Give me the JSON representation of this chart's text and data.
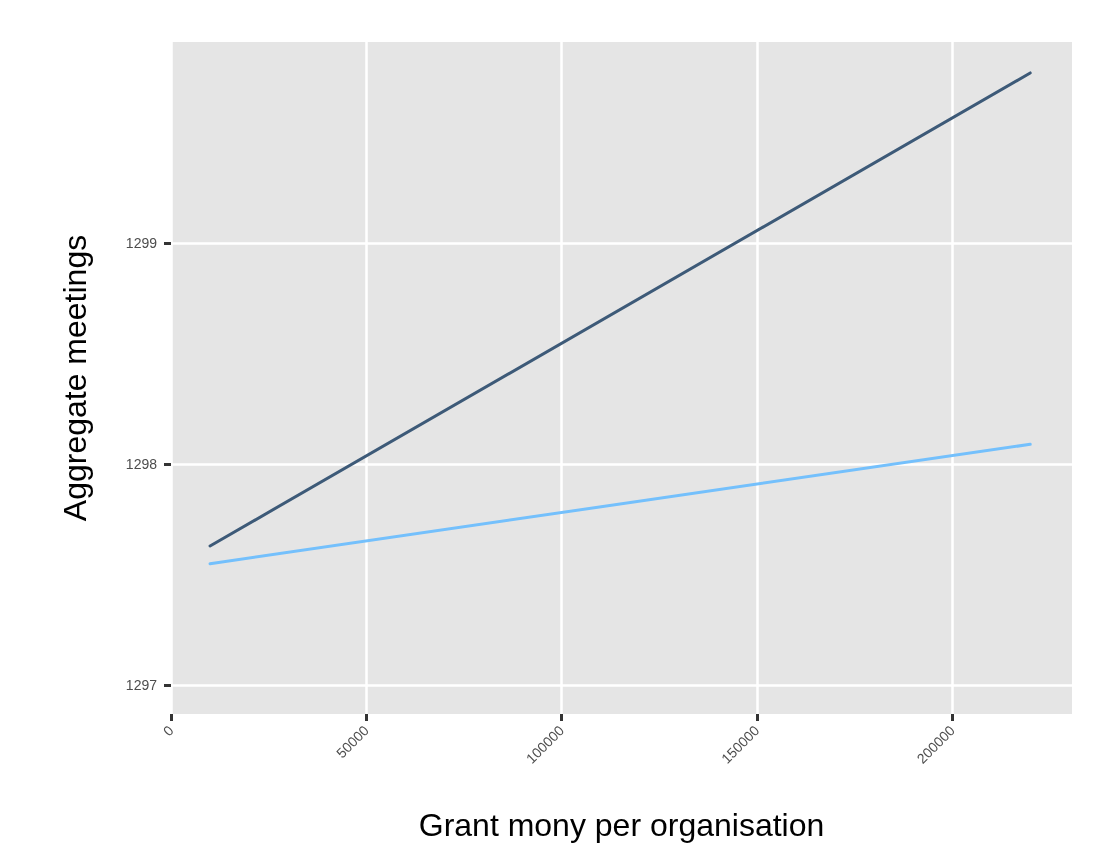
{
  "chart_data": {
    "type": "line",
    "xlabel": "Grant mony per organisation",
    "ylabel": "Aggregate meetings",
    "x": [
      10000,
      220000
    ],
    "xlim": [
      0,
      230700
    ],
    "xticks": [
      0,
      50000,
      100000,
      150000,
      200000
    ],
    "ylim": [
      1296.87,
      1299.91
    ],
    "yticks": [
      1297,
      1298,
      1299
    ],
    "grid": true,
    "marker": "none",
    "line_style": "solid",
    "series": [
      {
        "color": "#3d5a78",
        "values": [
          1297.63,
          1299.77
        ]
      },
      {
        "color": "#74c0fc",
        "values": [
          1297.55,
          1298.09
        ]
      }
    ]
  }
}
